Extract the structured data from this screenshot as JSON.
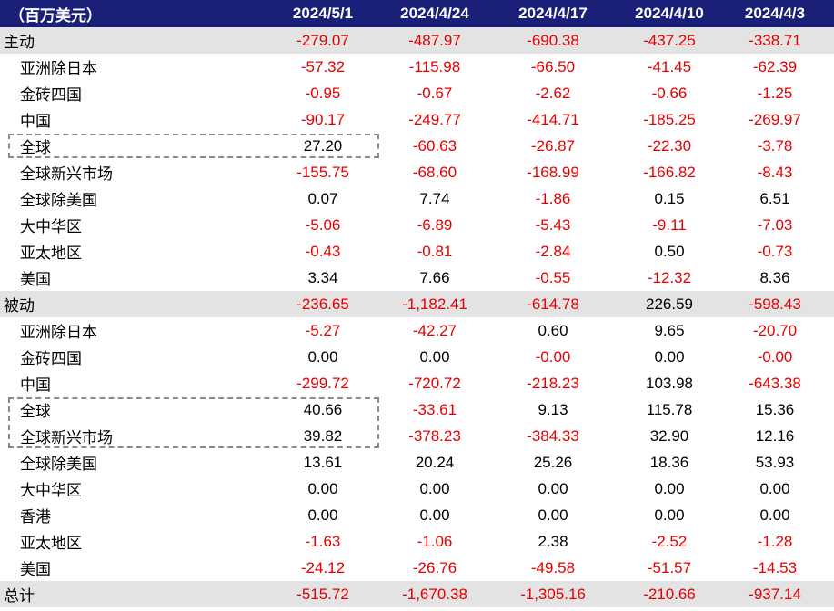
{
  "header": {
    "unit_label": "（百万美元）",
    "dates": [
      "2024/5/1",
      "2024/4/24",
      "2024/4/17",
      "2024/4/10",
      "2024/4/3"
    ]
  },
  "rows": [
    {
      "label": "主动",
      "type": "section",
      "values": [
        "-279.07",
        "-487.97",
        "-690.38",
        "-437.25",
        "-338.71"
      ]
    },
    {
      "label": "亚洲除日本",
      "type": "sub",
      "values": [
        "-57.32",
        "-115.98",
        "-66.50",
        "-41.45",
        "-62.39"
      ]
    },
    {
      "label": "金砖四国",
      "type": "sub",
      "values": [
        "-0.95",
        "-0.67",
        "-2.62",
        "-0.66",
        "-1.25"
      ]
    },
    {
      "label": "中国",
      "type": "sub",
      "values": [
        "-90.17",
        "-249.77",
        "-414.71",
        "-185.25",
        "-269.97"
      ]
    },
    {
      "label": "全球",
      "type": "sub",
      "values": [
        "27.20",
        "-60.63",
        "-26.87",
        "-22.30",
        "-3.78"
      ]
    },
    {
      "label": "全球新兴市场",
      "type": "sub",
      "values": [
        "-155.75",
        "-68.60",
        "-168.99",
        "-166.82",
        "-8.43"
      ]
    },
    {
      "label": "全球除美国",
      "type": "sub",
      "values": [
        "0.07",
        "7.74",
        "-1.86",
        "0.15",
        "6.51"
      ]
    },
    {
      "label": "大中华区",
      "type": "sub",
      "values": [
        "-5.06",
        "-6.89",
        "-5.43",
        "-9.11",
        "-7.03"
      ]
    },
    {
      "label": "亚太地区",
      "type": "sub",
      "values": [
        "-0.43",
        "-0.81",
        "-2.84",
        "0.50",
        "-0.73"
      ]
    },
    {
      "label": "美国",
      "type": "sub",
      "values": [
        "3.34",
        "7.66",
        "-0.55",
        "-12.32",
        "8.36"
      ]
    },
    {
      "label": "被动",
      "type": "section",
      "values": [
        "-236.65",
        "-1,182.41",
        "-614.78",
        "226.59",
        "-598.43"
      ]
    },
    {
      "label": "亚洲除日本",
      "type": "sub",
      "values": [
        "-5.27",
        "-42.27",
        "0.60",
        "9.65",
        "-20.70"
      ]
    },
    {
      "label": "金砖四国",
      "type": "sub",
      "values": [
        "0.00",
        "0.00",
        "-0.00",
        "0.00",
        "-0.00"
      ]
    },
    {
      "label": "中国",
      "type": "sub",
      "values": [
        "-299.72",
        "-720.72",
        "-218.23",
        "103.98",
        "-643.38"
      ]
    },
    {
      "label": "全球",
      "type": "sub",
      "values": [
        "40.66",
        "-33.61",
        "9.13",
        "115.78",
        "15.36"
      ]
    },
    {
      "label": "全球新兴市场",
      "type": "sub",
      "values": [
        "39.82",
        "-378.23",
        "-384.33",
        "32.90",
        "12.16"
      ]
    },
    {
      "label": "全球除美国",
      "type": "sub",
      "values": [
        "13.61",
        "20.24",
        "25.26",
        "18.36",
        "53.93"
      ]
    },
    {
      "label": "大中华区",
      "type": "sub",
      "values": [
        "0.00",
        "0.00",
        "0.00",
        "0.00",
        "0.00"
      ]
    },
    {
      "label": "香港",
      "type": "sub",
      "values": [
        "0.00",
        "0.00",
        "0.00",
        "0.00",
        "0.00"
      ]
    },
    {
      "label": "亚太地区",
      "type": "sub",
      "values": [
        "-1.63",
        "-1.06",
        "2.38",
        "-2.52",
        "-1.28"
      ]
    },
    {
      "label": "美国",
      "type": "sub",
      "values": [
        "-24.12",
        "-26.76",
        "-49.58",
        "-51.57",
        "-14.53"
      ]
    },
    {
      "label": "总计",
      "type": "section",
      "values": [
        "-515.72",
        "-1,670.38",
        "-1,305.16",
        "-210.66",
        "-937.14"
      ]
    }
  ],
  "colors": {
    "header_bg": "#1a1f78",
    "section_bg": "#e3e3e3",
    "negative": "#e60000",
    "positive": "#000000"
  },
  "highlights": [
    {
      "name": "active-global-highlight",
      "rows": [
        4
      ]
    },
    {
      "name": "passive-global-highlight",
      "rows": [
        14,
        15
      ]
    }
  ]
}
